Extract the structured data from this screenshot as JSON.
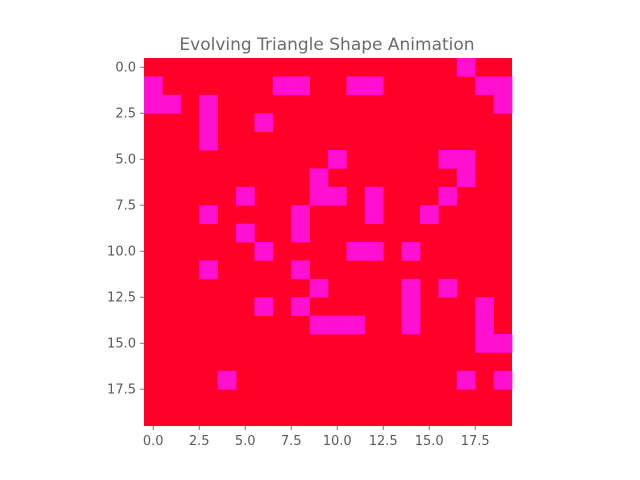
{
  "chart_data": {
    "type": "heatmap",
    "title": "Evolving Triangle Shape Animation",
    "rows": 20,
    "cols": 20,
    "x_ticks": [
      "0.0",
      "2.5",
      "5.0",
      "7.5",
      "10.0",
      "12.5",
      "15.0",
      "17.5"
    ],
    "y_ticks": [
      "0.0",
      "2.5",
      "5.0",
      "7.5",
      "10.0",
      "12.5",
      "15.0",
      "17.5"
    ],
    "tick_step": 2.5,
    "colors": {
      "background": "#ff0028",
      "highlight": "#ff10d0"
    },
    "grid": false,
    "cells": [
      [
        0,
        0,
        0,
        0,
        0,
        0,
        0,
        0,
        0,
        0,
        0,
        0,
        0,
        0,
        0,
        0,
        0,
        1,
        0,
        0
      ],
      [
        1,
        0,
        0,
        0,
        0,
        0,
        0,
        1,
        1,
        0,
        0,
        1,
        1,
        0,
        0,
        0,
        0,
        0,
        1,
        1
      ],
      [
        1,
        1,
        0,
        1,
        0,
        0,
        0,
        0,
        0,
        0,
        0,
        0,
        0,
        0,
        0,
        0,
        0,
        0,
        0,
        1
      ],
      [
        0,
        0,
        0,
        1,
        0,
        0,
        1,
        0,
        0,
        0,
        0,
        0,
        0,
        0,
        0,
        0,
        0,
        0,
        0,
        0
      ],
      [
        0,
        0,
        0,
        1,
        0,
        0,
        0,
        0,
        0,
        0,
        0,
        0,
        0,
        0,
        0,
        0,
        0,
        0,
        0,
        0
      ],
      [
        0,
        0,
        0,
        0,
        0,
        0,
        0,
        0,
        0,
        0,
        1,
        0,
        0,
        0,
        0,
        0,
        1,
        1,
        0,
        0
      ],
      [
        0,
        0,
        0,
        0,
        0,
        0,
        0,
        0,
        0,
        1,
        0,
        0,
        0,
        0,
        0,
        0,
        0,
        1,
        0,
        0
      ],
      [
        0,
        0,
        0,
        0,
        0,
        1,
        0,
        0,
        0,
        1,
        1,
        0,
        1,
        0,
        0,
        0,
        1,
        0,
        0,
        0
      ],
      [
        0,
        0,
        0,
        1,
        0,
        0,
        0,
        0,
        1,
        0,
        0,
        0,
        1,
        0,
        0,
        1,
        0,
        0,
        0,
        0
      ],
      [
        0,
        0,
        0,
        0,
        0,
        1,
        0,
        0,
        1,
        0,
        0,
        0,
        0,
        0,
        0,
        0,
        0,
        0,
        0,
        0
      ],
      [
        0,
        0,
        0,
        0,
        0,
        0,
        1,
        0,
        0,
        0,
        0,
        1,
        1,
        0,
        1,
        0,
        0,
        0,
        0,
        0
      ],
      [
        0,
        0,
        0,
        1,
        0,
        0,
        0,
        0,
        1,
        0,
        0,
        0,
        0,
        0,
        0,
        0,
        0,
        0,
        0,
        0
      ],
      [
        0,
        0,
        0,
        0,
        0,
        0,
        0,
        0,
        0,
        1,
        0,
        0,
        0,
        0,
        1,
        0,
        1,
        0,
        0,
        0
      ],
      [
        0,
        0,
        0,
        0,
        0,
        0,
        1,
        0,
        1,
        0,
        0,
        0,
        0,
        0,
        1,
        0,
        0,
        0,
        1,
        0
      ],
      [
        0,
        0,
        0,
        0,
        0,
        0,
        0,
        0,
        0,
        1,
        1,
        1,
        0,
        0,
        1,
        0,
        0,
        0,
        1,
        0
      ],
      [
        0,
        0,
        0,
        0,
        0,
        0,
        0,
        0,
        0,
        0,
        0,
        0,
        0,
        0,
        0,
        0,
        0,
        0,
        1,
        1
      ],
      [
        0,
        0,
        0,
        0,
        0,
        0,
        0,
        0,
        0,
        0,
        0,
        0,
        0,
        0,
        0,
        0,
        0,
        0,
        0,
        0
      ],
      [
        0,
        0,
        0,
        0,
        1,
        0,
        0,
        0,
        0,
        0,
        0,
        0,
        0,
        0,
        0,
        0,
        0,
        1,
        0,
        1
      ],
      [
        0,
        0,
        0,
        0,
        0,
        0,
        0,
        0,
        0,
        0,
        0,
        0,
        0,
        0,
        0,
        0,
        0,
        0,
        0,
        0
      ],
      [
        0,
        0,
        0,
        0,
        0,
        0,
        0,
        0,
        0,
        0,
        0,
        0,
        0,
        0,
        0,
        0,
        0,
        0,
        0,
        0
      ]
    ]
  }
}
